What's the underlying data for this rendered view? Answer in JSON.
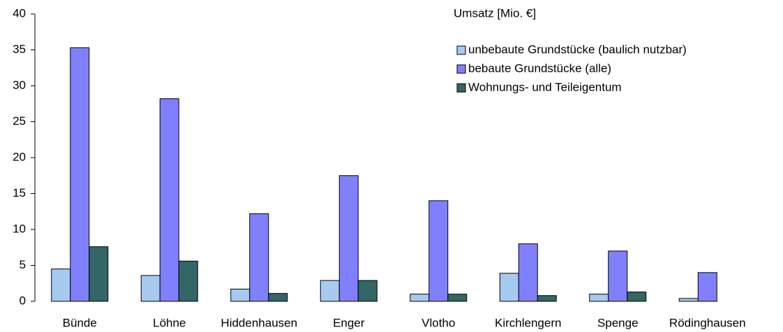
{
  "chart_data": {
    "type": "bar",
    "legend_title": "Umsatz [Mio. €]",
    "categories": [
      "Bünde",
      "Löhne",
      "Hiddenhausen",
      "Enger",
      "Vlotho",
      "Kirchlengern",
      "Spenge",
      "Rödinghausen"
    ],
    "series": [
      {
        "name": "unbebaute Grundstücke (baulich nutzbar)",
        "color": "#a6caf0",
        "values": [
          4.5,
          3.6,
          1.7,
          2.9,
          1.0,
          3.9,
          1.0,
          0.4
        ]
      },
      {
        "name": "bebaute Grundstücke (alle)",
        "color": "#8080ff",
        "values": [
          35.3,
          28.2,
          12.2,
          17.5,
          14.0,
          8.0,
          7.0,
          4.0
        ]
      },
      {
        "name": "Wohnungs- und Teileigentum",
        "color": "#336666",
        "values": [
          7.6,
          5.6,
          1.1,
          2.9,
          1.0,
          0.8,
          1.3,
          0
        ]
      }
    ],
    "ylim": [
      0,
      40
    ],
    "yticks": [
      0,
      5,
      10,
      15,
      20,
      25,
      30,
      35,
      40
    ],
    "grid": false,
    "legend": "top-right"
  }
}
